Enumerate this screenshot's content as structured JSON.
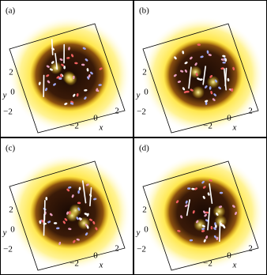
{
  "panels": [
    {
      "label": "(a)",
      "yticks": [
        "2",
        "0",
        "−2"
      ],
      "ylabel": "y",
      "xticks": [
        "−2",
        "0",
        "2"
      ],
      "xlabel": "x"
    },
    {
      "label": "(b)",
      "yticks": [
        "2",
        "0",
        "−2"
      ],
      "ylabel": "y",
      "xticks": [
        "−2",
        "0",
        "2"
      ],
      "xlabel": "x"
    },
    {
      "label": "(c)",
      "yticks": [
        "2",
        "0",
        "−2"
      ],
      "ylabel": "y",
      "xticks": [
        "−2",
        "0",
        "2"
      ],
      "xlabel": "x"
    },
    {
      "label": "(d)",
      "yticks": [
        "2",
        "0",
        "−2"
      ],
      "ylabel": "y",
      "xticks": [
        "−2",
        "0",
        "2"
      ],
      "xlabel": "x"
    }
  ]
}
